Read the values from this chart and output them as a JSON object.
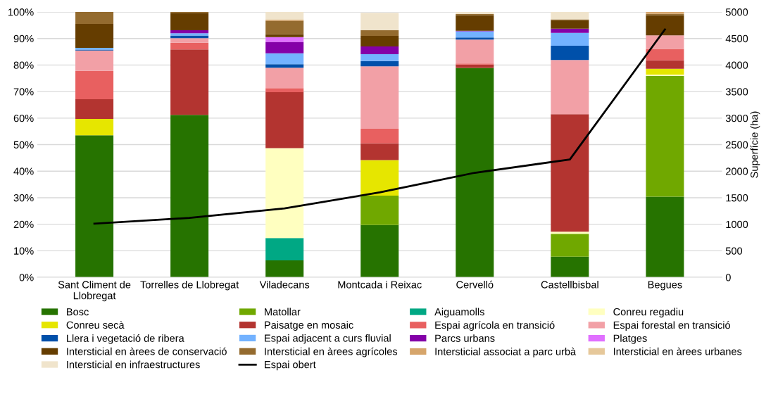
{
  "chart_data": {
    "type": "bar",
    "stacked": true,
    "ylabel": null,
    "y2label": "Superfície (ha)",
    "categories": [
      "Sant Climent de\nLlobregat",
      "Torrelles de Llobregat",
      "Viladecans",
      "Montcada i Reixac",
      "Cervelló",
      "Castellbisbal",
      "Begues"
    ],
    "ylim": [
      0,
      100
    ],
    "yticks": [
      {
        "value": 0,
        "label": "0%"
      },
      {
        "value": 10,
        "label": "10%"
      },
      {
        "value": 20,
        "label": "20%"
      },
      {
        "value": 30,
        "label": "30%"
      },
      {
        "value": 40,
        "label": "40%"
      },
      {
        "value": 50,
        "label": "50%"
      },
      {
        "value": 60,
        "label": "60%"
      },
      {
        "value": 70,
        "label": "70%"
      },
      {
        "value": 80,
        "label": "80%"
      },
      {
        "value": 90,
        "label": "90%"
      },
      {
        "value": 100,
        "label": "100%"
      }
    ],
    "y2lim": [
      0,
      5000
    ],
    "y2ticks": [
      0,
      500,
      1000,
      1500,
      2000,
      2500,
      3000,
      3500,
      4000,
      4500,
      5000
    ],
    "grid": "y",
    "legend": "bottom",
    "series": [
      {
        "name": "Bosc",
        "color": "#267300",
        "values": [
          53.5,
          61.2,
          6.4,
          19.7,
          78.9,
          7.8,
          30.4
        ]
      },
      {
        "name": "Matollar",
        "color": "#70a800",
        "values": [
          null,
          null,
          null,
          11.1,
          null,
          8.6,
          45.5
        ]
      },
      {
        "name": "Aiguamolls",
        "color": "#00a884",
        "values": [
          null,
          null,
          8.4,
          null,
          null,
          null,
          null
        ]
      },
      {
        "name": "Conreu regadiu",
        "color": "#ffffc0",
        "values": [
          null,
          null,
          33.9,
          null,
          null,
          0.8,
          0.5
        ]
      },
      {
        "name": "Conreu secà",
        "color": "#e6e600",
        "values": [
          6.2,
          null,
          null,
          13.4,
          null,
          null,
          2.2
        ]
      },
      {
        "name": "Paisatge en mosaic",
        "color": "#b33430",
        "values": [
          7.4,
          24.7,
          21.1,
          6.3,
          1.3,
          44.3,
          3.2
        ]
      },
      {
        "name": "Espai agrícola en transició",
        "color": "#e86060",
        "values": [
          10.7,
          2.5,
          1.5,
          5.5,
          0.4,
          null,
          4.3
        ]
      },
      {
        "name": "Espai forestal en transició",
        "color": "#f2a0a6",
        "values": [
          7.7,
          1.7,
          7.7,
          23.5,
          9.0,
          20.4,
          5.1
        ]
      },
      {
        "name": "Llera i vegetació de ribera",
        "color": "#0050aa",
        "values": [
          0.3,
          1.0,
          1.3,
          2.0,
          0.8,
          5.4,
          null
        ]
      },
      {
        "name": "Espai adjacent a curs fluvial",
        "color": "#73b2ff",
        "values": [
          0.7,
          0.9,
          4.1,
          2.6,
          2.3,
          4.8,
          null
        ]
      },
      {
        "name": "Parcs urbans",
        "color": "#8400a8",
        "values": [
          null,
          1.1,
          4.3,
          2.9,
          0.2,
          1.6,
          null
        ]
      },
      {
        "name": "Platges",
        "color": "#e070ff",
        "values": [
          null,
          null,
          1.8,
          null,
          null,
          null,
          null
        ]
      },
      {
        "name": "Intersticial en àrees de conservació",
        "color": "#653d00",
        "values": [
          9.0,
          6.6,
          1.1,
          4.0,
          5.9,
          3.2,
          7.6
        ]
      },
      {
        "name": "Intersticial en àrees agrícoles",
        "color": "#946b2f",
        "values": [
          4.5,
          0.3,
          5.1,
          2.2,
          0.4,
          0.3,
          0.5
        ]
      },
      {
        "name": "Intersticial associat a parc urbà",
        "color": "#d6a56b",
        "values": [
          null,
          null,
          0.4,
          null,
          null,
          null,
          0.7
        ]
      },
      {
        "name": "Intersticial en àrees urbanes",
        "color": "#e6c89a",
        "values": [
          null,
          null,
          null,
          null,
          null,
          null,
          null
        ]
      },
      {
        "name": "Intersticial en infraestructures",
        "color": "#f0e4cc",
        "values": [
          null,
          null,
          2.9,
          6.5,
          0.8,
          2.8,
          null
        ]
      },
      {
        "name": "Espai obert",
        "color": "#000000",
        "type": "line",
        "axis": "y2",
        "values": [
          1010,
          1120,
          1300,
          1600,
          1970,
          2220,
          4670
        ]
      }
    ]
  }
}
